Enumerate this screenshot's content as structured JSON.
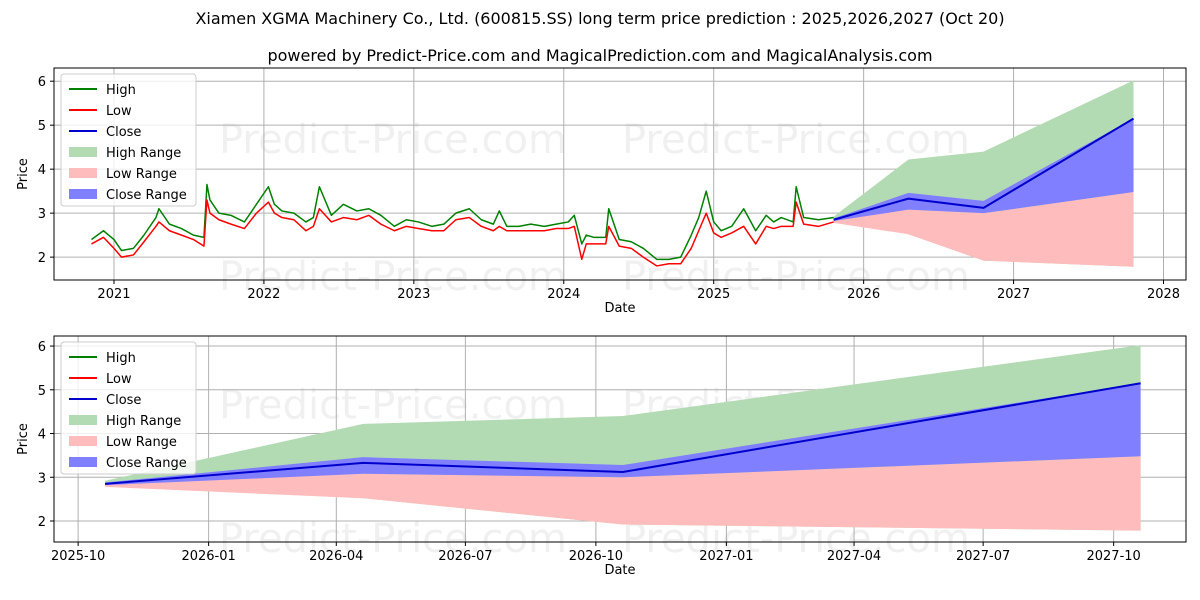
{
  "title": "Xiamen XGMA Machinery Co., Ltd. (600815.SS) long term price prediction : 2025,2026,2027 (Oct 20)",
  "subtitle": "powered by Predict-Price.com and MagicalPrediction.com and MagicalAnalysis.com",
  "watermark": "Predict-Price.com",
  "colors": {
    "high": "#008000",
    "low": "#ff0000",
    "close": "#0000cc",
    "high_range": "#b3dbb3",
    "low_range": "#ffbcbc",
    "close_range": "#7f7fff"
  },
  "chart_data": [
    {
      "type": "line",
      "name": "long-term",
      "xlabel": "Date",
      "ylabel": "Price",
      "xlim": [
        2020.6,
        2028.15
      ],
      "ylim": [
        1.48,
        6.3
      ],
      "xticks": [
        2021,
        2022,
        2023,
        2024,
        2025,
        2026,
        2027,
        2028
      ],
      "xtick_labels": [
        "2021",
        "2022",
        "2023",
        "2024",
        "2025",
        "2026",
        "2027",
        "2028"
      ],
      "yticks": [
        2,
        3,
        4,
        5,
        6
      ],
      "legend": [
        "High",
        "Low",
        "Close",
        "High Range",
        "Low Range",
        "Close Range"
      ],
      "legend_position": "top-left",
      "history_x": [
        2020.85,
        2020.93,
        2021.0,
        2021.05,
        2021.13,
        2021.2,
        2021.28,
        2021.3,
        2021.37,
        2021.45,
        2021.53,
        2021.6,
        2021.62,
        2021.64,
        2021.7,
        2021.78,
        2021.87,
        2021.95,
        2022.03,
        2022.07,
        2022.12,
        2022.2,
        2022.28,
        2022.33,
        2022.37,
        2022.45,
        2022.53,
        2022.62,
        2022.7,
        2022.78,
        2022.87,
        2022.95,
        2023.03,
        2023.12,
        2023.2,
        2023.28,
        2023.37,
        2023.45,
        2023.53,
        2023.57,
        2023.62,
        2023.7,
        2023.78,
        2023.87,
        2023.95,
        2024.03,
        2024.07,
        2024.12,
        2024.15,
        2024.2,
        2024.28,
        2024.3,
        2024.37,
        2024.45,
        2024.53,
        2024.62,
        2024.7,
        2024.78,
        2024.85,
        2024.9,
        2024.95,
        2025.0,
        2025.05,
        2025.12,
        2025.2,
        2025.28,
        2025.35,
        2025.4,
        2025.45,
        2025.53,
        2025.55,
        2025.6,
        2025.7,
        2025.8
      ],
      "high": [
        2.4,
        2.6,
        2.4,
        2.15,
        2.2,
        2.5,
        2.9,
        3.1,
        2.75,
        2.65,
        2.5,
        2.45,
        3.65,
        3.3,
        3.0,
        2.95,
        2.8,
        3.2,
        3.6,
        3.2,
        3.05,
        3.0,
        2.8,
        2.9,
        3.6,
        2.95,
        3.2,
        3.05,
        3.1,
        2.95,
        2.7,
        2.85,
        2.8,
        2.7,
        2.75,
        3.0,
        3.1,
        2.85,
        2.75,
        3.05,
        2.7,
        2.7,
        2.75,
        2.7,
        2.75,
        2.8,
        2.95,
        2.3,
        2.5,
        2.45,
        2.45,
        3.1,
        2.4,
        2.35,
        2.2,
        1.95,
        1.95,
        2.0,
        2.5,
        2.9,
        3.5,
        2.8,
        2.6,
        2.7,
        3.1,
        2.6,
        2.95,
        2.8,
        2.9,
        2.8,
        3.6,
        2.9,
        2.85,
        2.9
      ],
      "low": [
        2.3,
        2.45,
        2.2,
        2.0,
        2.05,
        2.35,
        2.7,
        2.8,
        2.6,
        2.5,
        2.4,
        2.25,
        3.3,
        3.0,
        2.85,
        2.75,
        2.65,
        3.0,
        3.25,
        3.0,
        2.9,
        2.85,
        2.6,
        2.7,
        3.1,
        2.8,
        2.9,
        2.85,
        2.95,
        2.75,
        2.6,
        2.7,
        2.65,
        2.6,
        2.6,
        2.85,
        2.9,
        2.7,
        2.6,
        2.7,
        2.6,
        2.6,
        2.6,
        2.6,
        2.65,
        2.65,
        2.7,
        1.95,
        2.3,
        2.3,
        2.3,
        2.7,
        2.25,
        2.2,
        2.0,
        1.8,
        1.85,
        1.85,
        2.2,
        2.6,
        3.0,
        2.55,
        2.45,
        2.55,
        2.7,
        2.3,
        2.7,
        2.65,
        2.7,
        2.7,
        3.25,
        2.75,
        2.7,
        2.8
      ]
    },
    {
      "type": "area",
      "name": "prediction",
      "xlabel": "Date",
      "ylabel": "Price",
      "xlim": [
        "2025-09-14",
        "2027-11-21"
      ],
      "ylim": [
        1.52,
        6.23
      ],
      "xticks": [
        "2025-10-01",
        "2026-01-01",
        "2026-04-01",
        "2026-07-01",
        "2026-10-01",
        "2027-01-01",
        "2027-04-01",
        "2027-07-01",
        "2027-10-01"
      ],
      "xtick_labels": [
        "2025-10",
        "2026-01",
        "2026-04",
        "2026-07",
        "2026-10",
        "2027-01",
        "2027-04",
        "2027-07",
        "2027-10"
      ],
      "yticks": [
        2,
        3,
        4,
        5,
        6
      ],
      "legend": [
        "High",
        "Low",
        "Close",
        "High Range",
        "Low Range",
        "Close Range"
      ],
      "legend_position": "top-left",
      "dates": [
        "2025-10-20",
        "2026-04-20",
        "2026-10-20",
        "2027-10-20"
      ],
      "close": [
        2.85,
        3.33,
        3.12,
        5.15
      ],
      "high_range": [
        [
          2.85,
          2.92
        ],
        [
          2.52,
          4.22
        ],
        [
          1.92,
          4.4
        ],
        [
          1.78,
          6.02
        ]
      ],
      "low_range": [
        [
          2.78,
          2.85
        ],
        [
          2.52,
          3.08
        ],
        [
          1.92,
          3.0
        ],
        [
          1.78,
          3.48
        ]
      ],
      "close_range": [
        [
          2.82,
          2.88
        ],
        [
          3.08,
          3.46
        ],
        [
          3.0,
          3.28
        ],
        [
          3.48,
          5.15
        ]
      ]
    }
  ]
}
